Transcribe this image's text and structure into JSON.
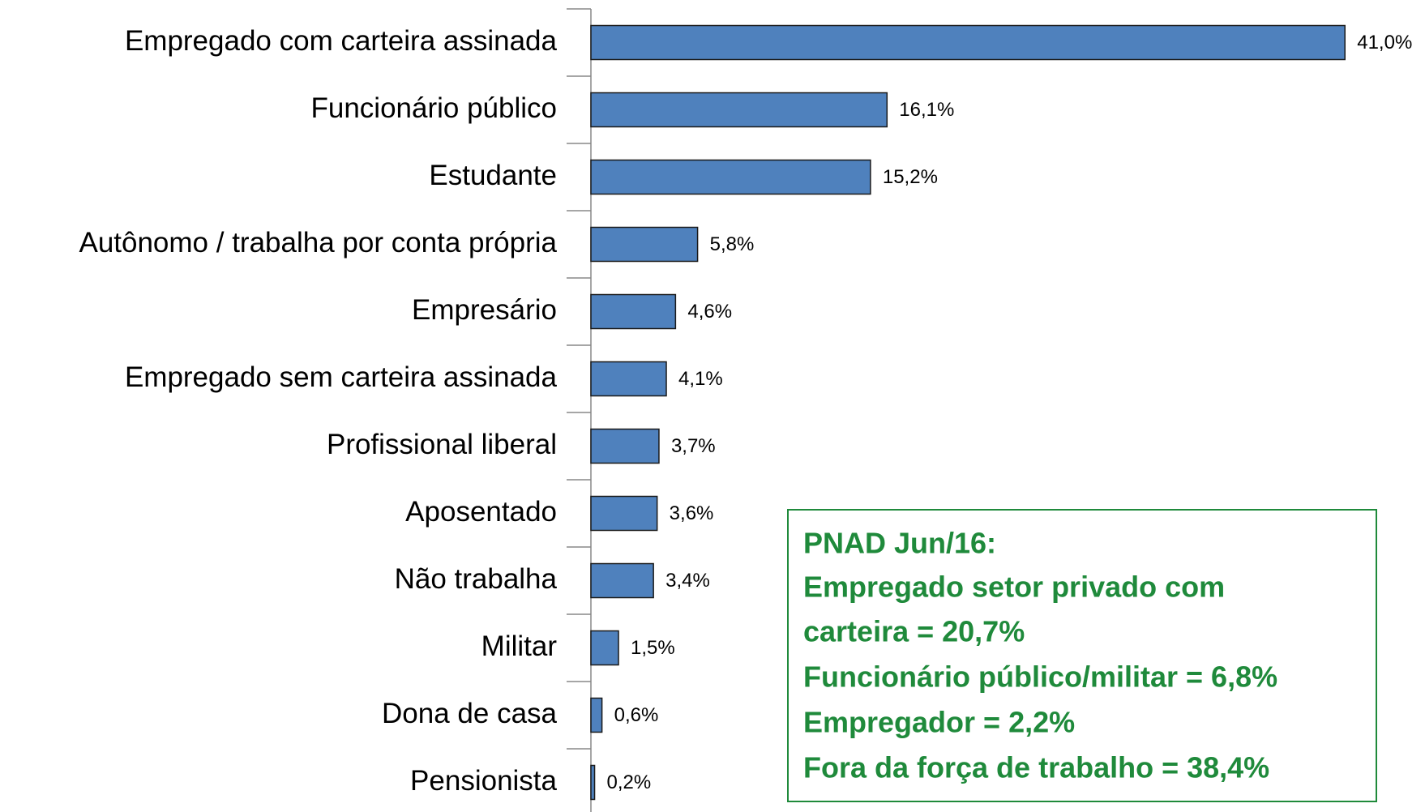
{
  "chart_data": {
    "type": "bar",
    "orientation": "horizontal",
    "categories": [
      "Empregado com carteira assinada",
      "Funcionário público",
      "Estudante",
      "Autônomo / trabalha por conta própria",
      "Empresário",
      "Empregado sem carteira assinada",
      "Profissional liberal",
      "Aposentado",
      "Não trabalha",
      "Militar",
      "Dona de casa",
      "Pensionista"
    ],
    "values": [
      41.0,
      16.1,
      15.2,
      5.8,
      4.6,
      4.1,
      3.7,
      3.6,
      3.4,
      1.5,
      0.6,
      0.2
    ],
    "value_labels": [
      "41,0%",
      "16,1%",
      "15,2%",
      "5,8%",
      "4,6%",
      "4,1%",
      "3,7%",
      "3,6%",
      "3,4%",
      "1,5%",
      "0,6%",
      "0,2%"
    ],
    "color": "#4f81bd",
    "xlim": [
      0,
      45
    ],
    "annotation": [
      "PNAD Jun/16:",
      "Empregado setor privado com",
      "carteira = 20,7%",
      "Funcionário público/militar = 6,8%",
      "Empregador = 2,2%",
      "Fora da força de trabalho = 38,4%"
    ]
  }
}
